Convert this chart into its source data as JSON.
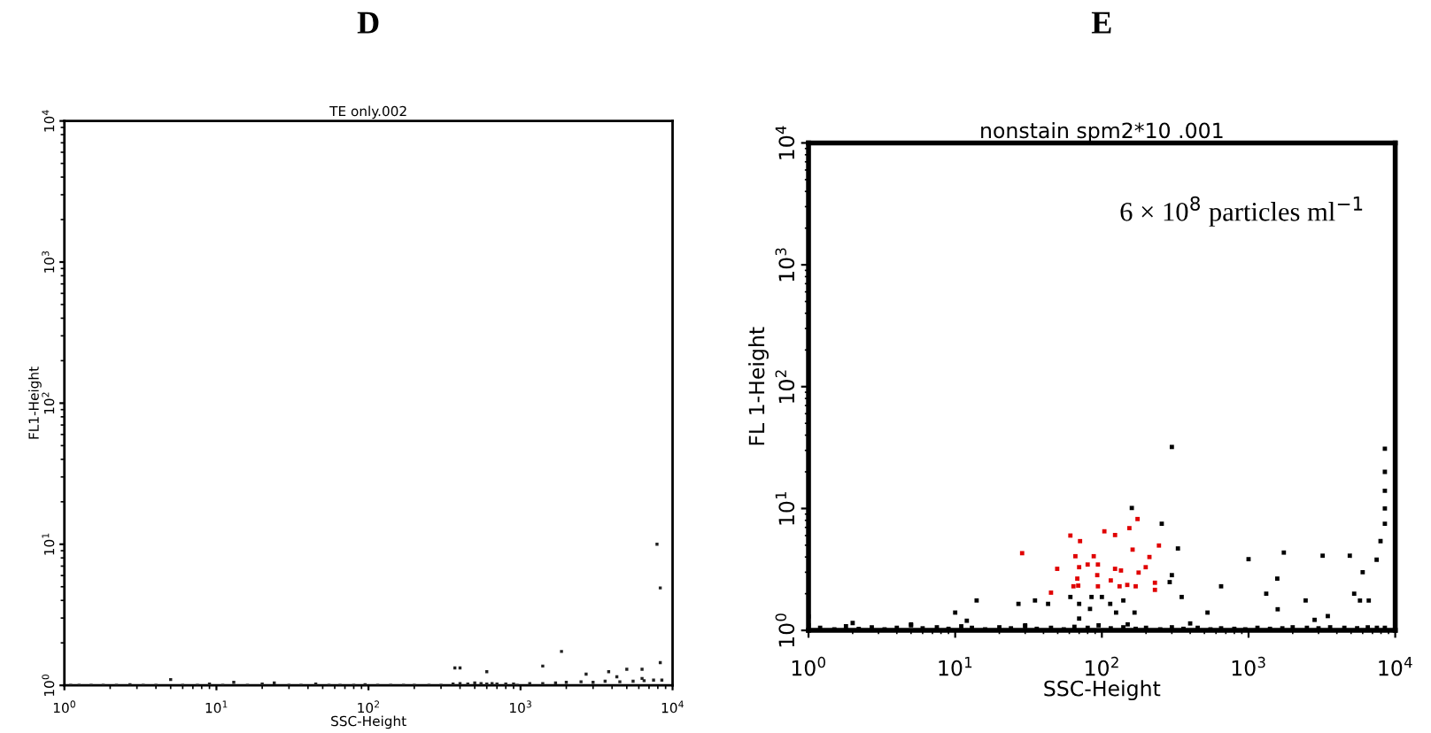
{
  "chart_data": [
    {
      "type": "scatter",
      "title": "D",
      "subtitle": "TE only.002",
      "xlabel": "SSC-Height",
      "ylabel": "FL1-Height",
      "log": "xy",
      "grid": false,
      "marker": "square",
      "xlim": [
        1,
        10000
      ],
      "ylim": [
        1,
        10000
      ],
      "xticks": [
        {
          "value": 1,
          "label": "10$^{0}$"
        },
        {
          "value": 10,
          "label": "10$^{1}$"
        },
        {
          "value": 100,
          "label": "10$^{2}$"
        },
        {
          "value": 1000,
          "label": "10$^{3}$"
        },
        {
          "value": 10000,
          "label": "10$^{4}$"
        }
      ],
      "yticks": [
        {
          "value": 1,
          "label": "10$^{0}$"
        },
        {
          "value": 10,
          "label": "10$^{1}$"
        },
        {
          "value": 100,
          "label": "10$^{2}$"
        },
        {
          "value": 1000,
          "label": "10$^{3}$"
        },
        {
          "value": 10000,
          "label": "10$^{4}$"
        }
      ],
      "series": [
        {
          "color": "#222222",
          "x": [
            1.1,
            1.25,
            1.5,
            1.8,
            2.2,
            2.7,
            3.3,
            4,
            5,
            6,
            7.5,
            9,
            11,
            13,
            16,
            20,
            24,
            30,
            36,
            45,
            55,
            65,
            80,
            95,
            115,
            140,
            170,
            200,
            250,
            300,
            360,
            400,
            450,
            500,
            550,
            600,
            650,
            700,
            800,
            900,
            950,
            1150,
            1400,
            1700,
            2000,
            2500,
            3000,
            3600,
            4500,
            5500,
            6500,
            7500,
            8500,
            7900,
            8300,
            1860,
            1400,
            370,
            400,
            600,
            2700,
            3800,
            5000,
            6300,
            8300,
            6300,
            4300
          ],
          "values": [
            1,
            1,
            1,
            1,
            1,
            1.01,
            1,
            1,
            1.1,
            1,
            1,
            1.02,
            1,
            1.05,
            1,
            1.02,
            1.04,
            1,
            1,
            1.02,
            1,
            1,
            1,
            1.01,
            1,
            1,
            1,
            1,
            1,
            1,
            1.02,
            1.03,
            1.02,
            1.04,
            1.03,
            1.02,
            1.03,
            1.02,
            1.02,
            1.02,
            1,
            1.03,
            1.03,
            1.04,
            1.05,
            1.06,
            1.05,
            1.07,
            1.06,
            1.07,
            1.08,
            1.09,
            1.09,
            10,
            4.9,
            1.74,
            1.37,
            1.33,
            1.33,
            1.25,
            1.2,
            1.25,
            1.3,
            1.3,
            1.45,
            1.12,
            1.15
          ]
        }
      ]
    },
    {
      "type": "scatter",
      "title": "E",
      "subtitle": "nonstain spm2*10 .001",
      "xlabel": "SSC-Height",
      "ylabel": "FL 1-Height",
      "log": "xy",
      "grid": false,
      "marker": "square",
      "xlim": [
        1,
        10000
      ],
      "ylim": [
        1,
        10000
      ],
      "xticks": [
        {
          "value": 1,
          "label": "10$^{0}$"
        },
        {
          "value": 10,
          "label": "10$^{1}$"
        },
        {
          "value": 100,
          "label": "10$^{2}$"
        },
        {
          "value": 1000,
          "label": "10$^{3}$"
        },
        {
          "value": 10000,
          "label": "10$^{4}$"
        }
      ],
      "yticks": [
        {
          "value": 1,
          "label": "10$^{0}$"
        },
        {
          "value": 10,
          "label": "10$^{1}$"
        },
        {
          "value": 100,
          "label": "10$^{2}$"
        },
        {
          "value": 1000,
          "label": "10$^{3}$"
        },
        {
          "value": 10000,
          "label": "10$^{4}$"
        }
      ],
      "annotations": [
        "6 × 10$^{8}$ particles ml$^{−1}$"
      ],
      "series": [
        {
          "color": "#000000",
          "x": [
            1,
            1.2,
            1.5,
            1.8,
            2.2,
            2.7,
            3.3,
            4,
            5,
            6,
            7.5,
            9,
            11,
            13,
            16,
            20,
            24,
            30,
            36,
            45,
            55,
            65,
            80,
            95,
            115,
            140,
            170,
            200,
            250,
            300,
            360,
            450,
            550,
            650,
            800,
            950,
            1150,
            1400,
            1700,
            2000,
            2500,
            3000,
            3600,
            4500,
            5500,
            6500,
            7500,
            8500,
            1,
            2,
            5,
            12,
            30,
            70,
            150,
            160,
            256,
            300,
            8500,
            8500,
            8500,
            8500,
            8500,
            7940,
            7470,
            6000,
            5250,
            4900,
            3200,
            1740,
            1000,
            650,
            1320,
            1570,
            330,
            300,
            290,
            350,
            14,
            27,
            35,
            43,
            61,
            10,
            2450,
            2820,
            3470,
            5750,
            6600,
            1580,
            525,
            400,
            114,
            70,
            83,
            125,
            167,
            140,
            100,
            85
          ],
          "values": [
            1.1,
            1.05,
            1.02,
            1.08,
            1.03,
            1.06,
            1.02,
            1.05,
            1.1,
            1.04,
            1.06,
            1.03,
            1.08,
            1.05,
            1.02,
            1.06,
            1.04,
            1.08,
            1.03,
            1.05,
            1.02,
            1.07,
            1.05,
            1.1,
            1.04,
            1.06,
            1.03,
            1.05,
            1.02,
            1.06,
            1.03,
            1.05,
            1.02,
            1.04,
            1.03,
            1.02,
            1.05,
            1.03,
            1.04,
            1.06,
            1.05,
            1.04,
            1.06,
            1.05,
            1.04,
            1.06,
            1.05,
            1.05,
            1.3,
            1.15,
            1.12,
            1.2,
            1.1,
            1.25,
            1.12,
            10.1,
            7.5,
            32,
            31,
            20,
            14,
            10,
            7.5,
            5.4,
            3.8,
            3.0,
            2.0,
            4.1,
            4.1,
            4.35,
            3.84,
            2.3,
            2.0,
            2.66,
            4.7,
            2.84,
            2.49,
            1.88,
            1.76,
            1.65,
            1.76,
            1.65,
            1.88,
            1.4,
            1.76,
            1.22,
            1.31,
            1.76,
            1.76,
            1.49,
            1.4,
            1.14,
            1.65,
            1.65,
            1.5,
            1.4,
            1.4,
            1.76,
            1.88,
            1.88
          ]
        },
        {
          "color": "#e00000",
          "x": [
            28.6,
            49.6,
            61,
            71,
            66,
            70,
            68,
            69,
            88,
            94,
            93,
            104,
            123,
            154,
            175,
            162,
            115,
            132,
            149,
            170,
            211,
            199,
            245,
            230,
            230,
            135,
            178,
            123,
            94,
            64,
            45,
            80
          ],
          "values": [
            4.3,
            3.2,
            6.0,
            5.4,
            4.06,
            3.3,
            2.66,
            2.33,
            4.06,
            3.47,
            2.84,
            6.5,
            6.06,
            6.9,
            8.2,
            4.6,
            2.57,
            2.3,
            2.36,
            2.3,
            4.0,
            3.3,
            4.97,
            2.46,
            2.15,
            3.1,
            2.98,
            3.2,
            2.3,
            2.3,
            2.04,
            3.47
          ]
        }
      ]
    }
  ]
}
